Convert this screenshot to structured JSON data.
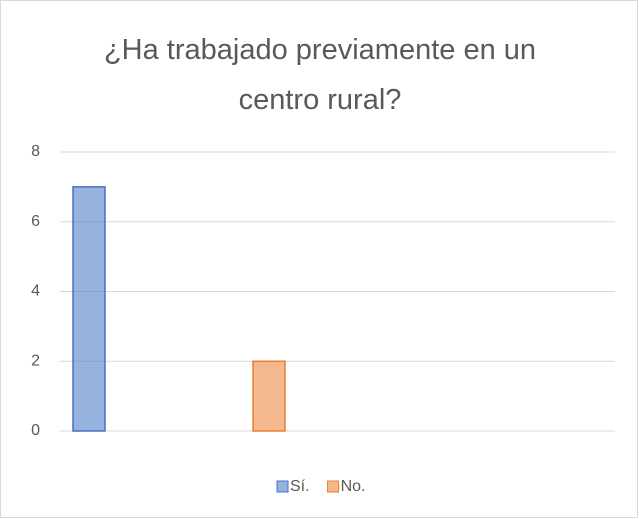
{
  "chart_data": {
    "type": "bar",
    "title": "¿Ha trabajado previamente en un centro rural?",
    "categories": [
      null
    ],
    "series": [
      {
        "name": "Sí.",
        "color": "#4472c4",
        "values": [
          7
        ]
      },
      {
        "name": "No.",
        "color": "#ed7d31",
        "values": [
          2
        ]
      }
    ],
    "ylim": [
      0,
      8
    ],
    "yticks": [
      0,
      2,
      4,
      6,
      8
    ],
    "grid": true,
    "legend": "bottom"
  }
}
